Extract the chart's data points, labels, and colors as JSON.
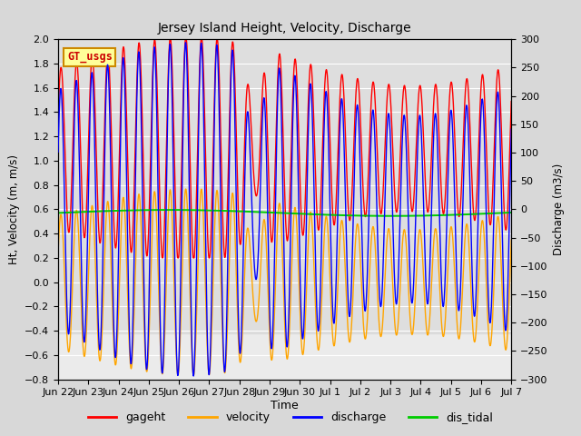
{
  "title": "Jersey Island Height, Velocity, Discharge",
  "xlabel": "Time",
  "ylabel_left": "Ht, Velocity (m, m/s)",
  "ylabel_right": "Discharge (m3/s)",
  "ylim_left": [
    -0.8,
    2.0
  ],
  "ylim_right": [
    -300,
    300
  ],
  "yticks_left": [
    -0.8,
    -0.6,
    -0.4,
    -0.2,
    0.0,
    0.2,
    0.4,
    0.6,
    0.8,
    1.0,
    1.2,
    1.4,
    1.6,
    1.8,
    2.0
  ],
  "yticks_right": [
    -300,
    -250,
    -200,
    -150,
    -100,
    -50,
    0,
    50,
    100,
    150,
    200,
    250,
    300
  ],
  "xtick_labels": [
    "Jun 22",
    "Jun 23",
    "Jun 24",
    "Jun 25",
    "Jun 26",
    "Jun 27",
    "Jun 28",
    "Jun 29",
    "Jun 30",
    "Jul 1",
    "Jul 2",
    "Jul 3",
    "Jul 4",
    "Jul 5",
    "Jul 6",
    "Jul 7"
  ],
  "legend_entries": [
    "gageht",
    "velocity",
    "discharge",
    "dis_tidal"
  ],
  "legend_colors": [
    "#ff0000",
    "#ffa500",
    "#0000ff",
    "#00cc00"
  ],
  "watermark_text": "GT_usgs",
  "watermark_fg": "#cc0000",
  "watermark_bg": "#ffff99",
  "watermark_border": "#cc8800",
  "bg_color": "#d8d8d8",
  "plot_bg": "#ebebeb",
  "grid_color": "#ffffff",
  "n_days": 15,
  "tidal_period_hours": 12.4,
  "dis_tidal_value": 0.57
}
